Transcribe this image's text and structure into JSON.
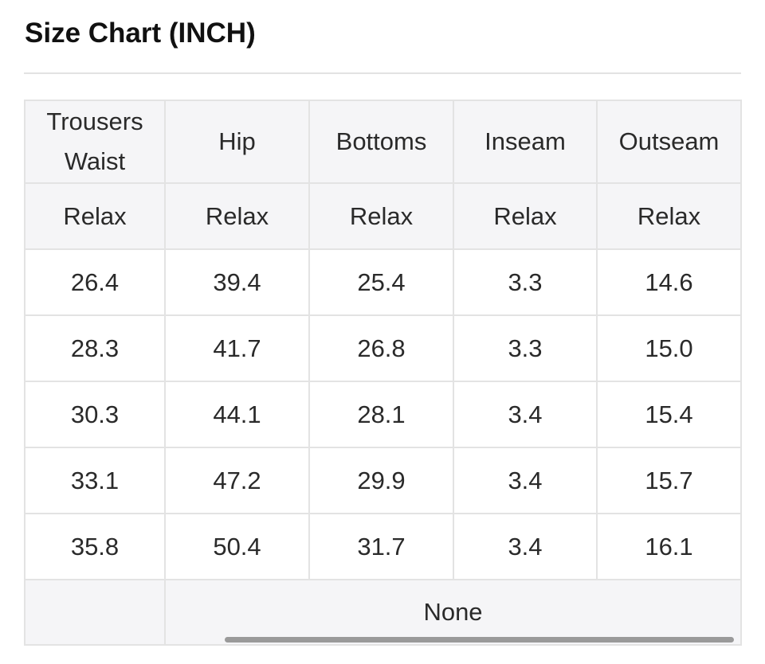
{
  "title": "Size Chart (INCH)",
  "table": {
    "headers": [
      "Trousers Waist",
      "Hip",
      "Bottoms",
      "Inseam",
      "Outseam"
    ],
    "subheaders": [
      "Relax",
      "Relax",
      "Relax",
      "Relax",
      "Relax"
    ],
    "rows": [
      [
        "26.4",
        "39.4",
        "25.4",
        "3.3",
        "14.6"
      ],
      [
        "28.3",
        "41.7",
        "26.8",
        "3.3",
        "15.0"
      ],
      [
        "30.3",
        "44.1",
        "28.1",
        "3.4",
        "15.4"
      ],
      [
        "33.1",
        "47.2",
        "29.9",
        "3.4",
        "15.7"
      ],
      [
        "35.8",
        "50.4",
        "31.7",
        "3.4",
        "16.1"
      ]
    ],
    "footer": "None"
  }
}
